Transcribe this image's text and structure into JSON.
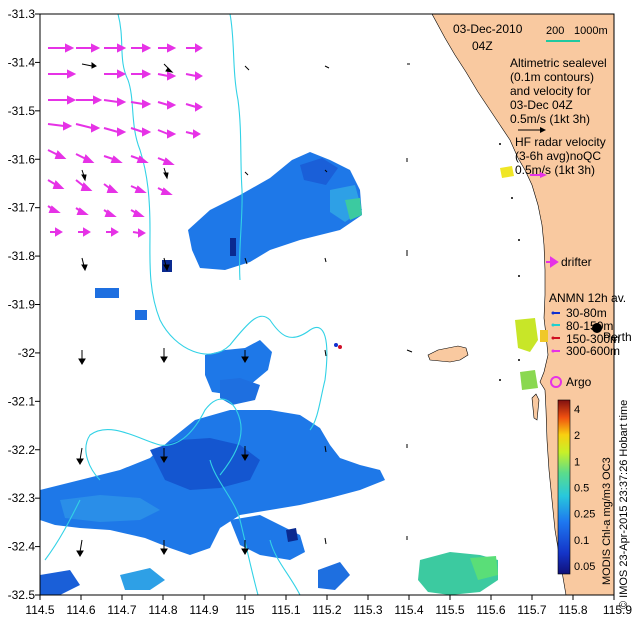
{
  "map": {
    "lon_range": [
      114.5,
      115.9
    ],
    "lat_range": [
      -32.5,
      -31.3
    ],
    "x_ticks": [
      "114.5",
      "114.6",
      "114.7",
      "114.8",
      "114.9",
      "115",
      "115.1",
      "115.2",
      "115.3",
      "115.4",
      "115.5",
      "115.6",
      "115.7",
      "115.8",
      "115.9"
    ],
    "y_ticks": [
      "-31.3",
      "-31.4",
      "-31.5",
      "-31.6",
      "-31.7",
      "-31.8",
      "-31.9",
      "-32",
      "-32.1",
      "-32.2",
      "-32.3",
      "-32.4",
      "-32.5"
    ],
    "colors": {
      "land": "#f9c9a0",
      "contour": "#32d2e6",
      "hf_radar_arrow": "#e632e6",
      "altimetry_arrow": "#000000",
      "chl_low": "#1e5fd8",
      "chl_high": "#f0e626",
      "scale_bar": "#20c8a0"
    }
  },
  "annotations": {
    "date": "03-Dec-2010",
    "hour": "04Z",
    "scale_200": "200",
    "scale_1000": "1000m",
    "alt_line1": "Altimetric sealevel",
    "alt_line2": "(0.1m contours)",
    "alt_line3": "and velocity for",
    "alt_line4": "03-Dec 04Z",
    "alt_line5": "0.5m/s (1kt 3h)",
    "hf_line1": "HF radar velocity",
    "hf_line2": "(3-6h avg)noQC",
    "hf_line3": "0.5m/s (1kt 3h)",
    "drifter": "drifter",
    "anmn_title": "ANMN 12h av.",
    "anmn_1": "30-80m",
    "anmn_2": "80-150m",
    "anmn_3": "150-300m",
    "anmn_4": "300-600m",
    "perth": "Perth",
    "argo": "Argo",
    "colorbar_label": "MODIS Chl-a mg/m3 OC3",
    "credit": "© IMOS 23-Apr-2015 23:37:26 Hobart time"
  },
  "colorbar": {
    "ticks": [
      "4",
      "2",
      "1",
      "0.5",
      "0.25",
      "0.1",
      "0.05"
    ]
  }
}
